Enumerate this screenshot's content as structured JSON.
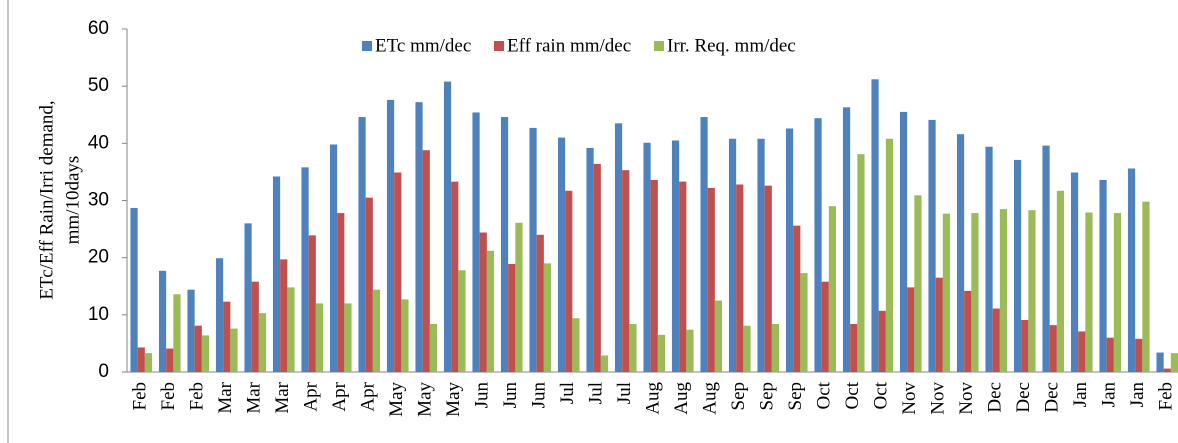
{
  "chart_data": {
    "type": "bar",
    "ylabel": [
      "ETc/Eff Rain/Irri demand,",
      "mm/10days"
    ],
    "categories": [
      "Feb",
      "Feb",
      "Feb",
      "Mar",
      "Mar",
      "Mar",
      "Apr",
      "Apr",
      "Apr",
      "May",
      "May",
      "May",
      "Jun",
      "Jun",
      "Jun",
      "Jul",
      "Jul",
      "Jul",
      "Aug",
      "Aug",
      "Aug",
      "Sep",
      "Sep",
      "Sep",
      "Oct",
      "Oct",
      "Oct",
      "Nov",
      "Nov",
      "Nov",
      "Dec",
      "Dec",
      "Dec",
      "Jan",
      "Jan",
      "Jan",
      "Feb"
    ],
    "series": [
      {
        "name": "ETc mm/dec",
        "color": "#4f81bd",
        "values": [
          28.7,
          17.7,
          14.4,
          19.9,
          26,
          34.2,
          35.8,
          39.8,
          44.6,
          47.6,
          47.2,
          50.8,
          45.4,
          44.6,
          42.7,
          41,
          39.2,
          43.5,
          40.1,
          40.5,
          44.6,
          40.8,
          40.8,
          42.6,
          44.4,
          46.3,
          51.2,
          45.5,
          44.1,
          41.6,
          39.4,
          37.1,
          39.6,
          34.9,
          33.6,
          35.6,
          3.4
        ]
      },
      {
        "name": "Eff rain mm/dec",
        "color": "#c0504d",
        "values": [
          4.3,
          4.1,
          8.1,
          12.3,
          15.8,
          19.7,
          23.9,
          27.8,
          30.5,
          34.9,
          38.8,
          33.3,
          24.4,
          18.9,
          24,
          31.7,
          36.4,
          35.3,
          33.6,
          33.3,
          32.2,
          32.8,
          32.6,
          25.6,
          15.8,
          8.4,
          10.7,
          14.8,
          16.5,
          14.2,
          11.1,
          9.1,
          8.2,
          7.1,
          6,
          5.8,
          0.6
        ]
      },
      {
        "name": "Irr. Req. mm/dec",
        "color": "#9bbb59",
        "values": [
          3.3,
          13.6,
          6.4,
          7.6,
          10.3,
          14.8,
          12,
          12,
          14.4,
          12.7,
          8.4,
          17.8,
          21.2,
          26.1,
          19,
          9.4,
          2.9,
          8.4,
          6.5,
          7.4,
          12.5,
          8.1,
          8.4,
          17.3,
          29,
          38.1,
          40.8,
          30.9,
          27.7,
          27.8,
          28.5,
          28.3,
          31.7,
          27.9,
          27.8,
          29.8,
          3.3
        ]
      }
    ],
    "ylim": [
      0,
      60
    ],
    "yticks": [
      0,
      10,
      20,
      30,
      40,
      50,
      60
    ],
    "grid": false,
    "legend": "top"
  }
}
